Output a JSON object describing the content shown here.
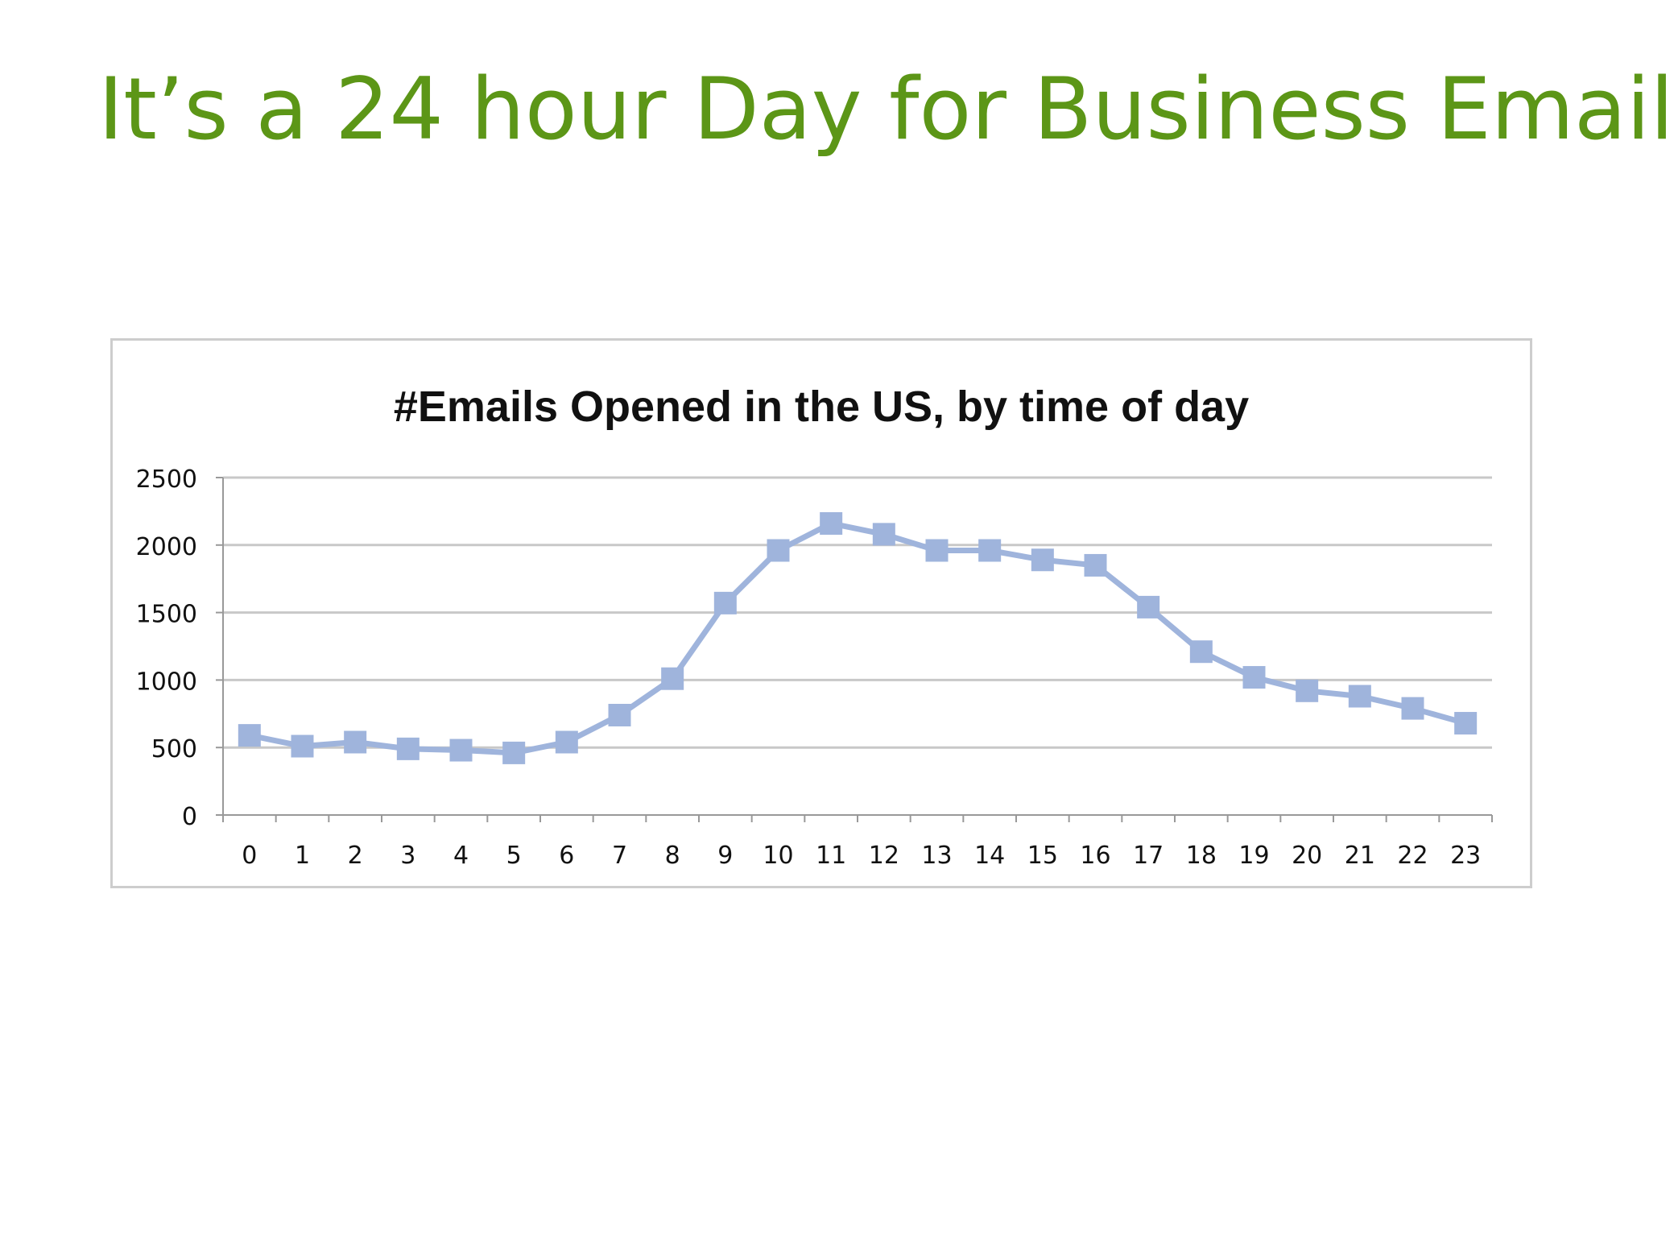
{
  "slide": {
    "title": "It’s a 24 hour Day for Business Email"
  },
  "colors": {
    "title": "#5c9617",
    "series": "#9fb4dc",
    "gridline": "#c8c8c8",
    "text": "#111111"
  },
  "chart_data": {
    "type": "line",
    "title": "#Emails Opened in the US, by time of day",
    "xlabel": "",
    "ylabel": "",
    "categories": [
      "0",
      "1",
      "2",
      "3",
      "4",
      "5",
      "6",
      "7",
      "8",
      "9",
      "10",
      "11",
      "12",
      "13",
      "14",
      "15",
      "16",
      "17",
      "18",
      "19",
      "20",
      "21",
      "22",
      "23"
    ],
    "yticks": [
      0,
      500,
      1000,
      1500,
      2000,
      2500
    ],
    "ylim": [
      0,
      2500
    ],
    "grid": true,
    "legend": "none",
    "marker": "square",
    "series": [
      {
        "values": [
          590,
          510,
          540,
          490,
          480,
          460,
          540,
          740,
          1010,
          1570,
          1960,
          2160,
          2080,
          1960,
          1960,
          1890,
          1850,
          1540,
          1210,
          1020,
          920,
          880,
          790,
          680
        ]
      }
    ]
  }
}
